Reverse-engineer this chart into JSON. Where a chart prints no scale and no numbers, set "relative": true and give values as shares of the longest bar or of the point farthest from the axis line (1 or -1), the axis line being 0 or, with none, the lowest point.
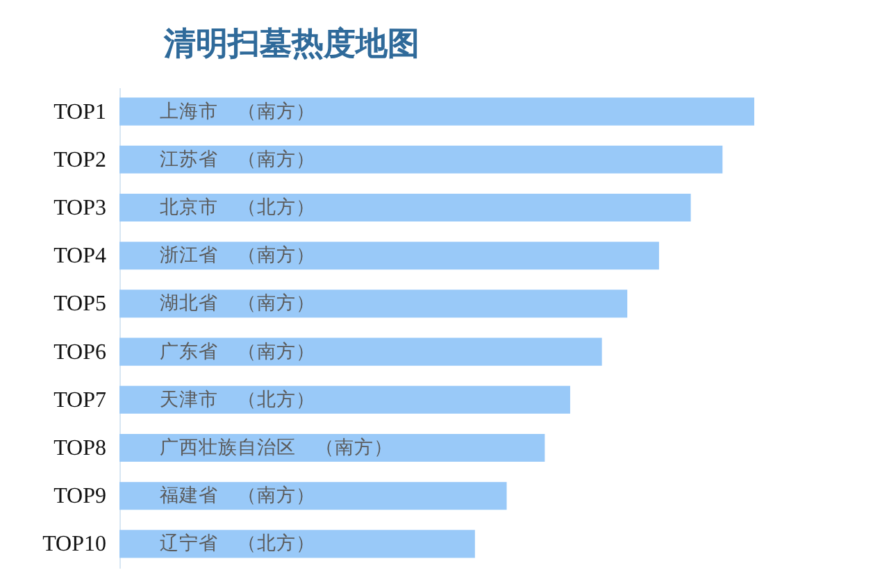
{
  "chart_data": {
    "type": "bar",
    "title": "清明扫墓热度地图",
    "categories": [
      "TOP1",
      "TOP2",
      "TOP3",
      "TOP4",
      "TOP5",
      "TOP6",
      "TOP7",
      "TOP8",
      "TOP9",
      "TOP10"
    ],
    "values": [
      1,
      0.95,
      0.9,
      0.85,
      0.8,
      0.76,
      0.71,
      0.67,
      0.61,
      0.56
    ],
    "annotations": [
      {
        "text": "上海市　（南方）",
        "y": "TOP1"
      },
      {
        "text": "江苏省　（南方）",
        "y": "TOP2"
      },
      {
        "text": "北京市　（北方）",
        "y": "TOP3"
      },
      {
        "text": "浙江省　（南方）",
        "y": "TOP4"
      },
      {
        "text": "湖北省　（南方）",
        "y": "TOP5"
      },
      {
        "text": "广东省　（南方）",
        "y": "TOP6"
      },
      {
        "text": "天津市　（北方）",
        "y": "TOP7"
      },
      {
        "text": "广西壮族自治区　（南方）",
        "y": "TOP8"
      },
      {
        "text": "福建省　（南方）",
        "y": "TOP9"
      },
      {
        "text": "辽宁省　（北方）",
        "y": "TOP10"
      }
    ],
    "color": "#99c9f8",
    "relative": true,
    "orientation": "horizontal"
  }
}
